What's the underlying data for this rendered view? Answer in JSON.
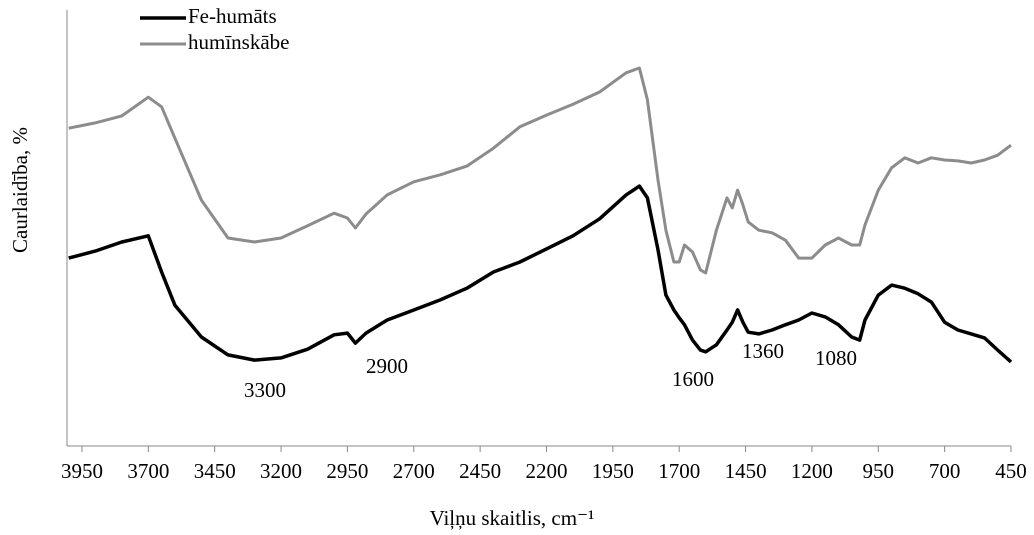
{
  "chart_data": {
    "type": "line",
    "xlabel": "Viļņu skaitlis, cm⁻¹",
    "ylabel": "Caurlaidība, %",
    "x": [
      4000,
      3900,
      3800,
      3700,
      3650,
      3600,
      3500,
      3400,
      3300,
      3200,
      3100,
      3000,
      2950,
      2920,
      2880,
      2800,
      2700,
      2600,
      2500,
      2400,
      2300,
      2200,
      2100,
      2000,
      1900,
      1850,
      1820,
      1780,
      1750,
      1720,
      1700,
      1680,
      1650,
      1620,
      1600,
      1560,
      1520,
      1500,
      1480,
      1460,
      1440,
      1400,
      1350,
      1300,
      1250,
      1200,
      1150,
      1100,
      1050,
      1020,
      1000,
      950,
      900,
      850,
      800,
      750,
      700,
      650,
      600,
      550,
      500,
      450
    ],
    "series": [
      {
        "name": "Fe-humāts",
        "color": "#000000",
        "values": [
          43.1,
          44.7,
          46.8,
          48.2,
          39.9,
          32.3,
          25.0,
          20.9,
          19.7,
          20.2,
          22.2,
          25.5,
          25.9,
          23.6,
          25.9,
          28.9,
          31.2,
          33.5,
          36.2,
          39.9,
          42.2,
          45.2,
          48.2,
          52.1,
          57.6,
          59.6,
          56.9,
          45.0,
          34.6,
          31.2,
          29.4,
          27.8,
          24.3,
          22.0,
          21.6,
          23.2,
          26.6,
          28.4,
          31.2,
          28.4,
          26.1,
          25.7,
          26.6,
          27.8,
          28.9,
          30.5,
          29.6,
          27.8,
          25.0,
          24.3,
          28.9,
          34.6,
          36.9,
          36.2,
          34.9,
          33.0,
          28.4,
          26.6,
          25.7,
          24.8,
          22.0,
          19.3
        ]
      },
      {
        "name": "humīnskābe",
        "color": "#8c8c8c",
        "values": [
          72.9,
          74.1,
          75.7,
          80.0,
          77.8,
          70.6,
          56.4,
          47.7,
          46.8,
          47.7,
          50.5,
          53.4,
          52.3,
          50.0,
          53.2,
          57.6,
          60.6,
          62.2,
          64.2,
          68.3,
          73.2,
          75.9,
          78.4,
          81.2,
          85.6,
          86.7,
          79.4,
          61.0,
          49.5,
          42.2,
          42.2,
          46.1,
          44.5,
          40.4,
          39.7,
          49.5,
          56.9,
          54.6,
          58.7,
          55.3,
          51.4,
          49.5,
          48.9,
          47.2,
          43.1,
          43.1,
          46.1,
          47.7,
          46.1,
          46.1,
          50.7,
          58.7,
          63.8,
          66.1,
          64.9,
          66.1,
          65.6,
          65.4,
          64.9,
          65.6,
          66.7,
          69.0
        ]
      }
    ],
    "annotations": [
      "3300",
      "2900",
      "1600",
      "1360",
      "1080"
    ],
    "xlim": [
      4000,
      450
    ],
    "xticks": [
      3950,
      3700,
      3450,
      3200,
      2950,
      2700,
      2450,
      2200,
      1950,
      1700,
      1450,
      1200,
      950,
      700,
      450
    ],
    "ylim": [
      0,
      100
    ],
    "legend": "top-left"
  }
}
